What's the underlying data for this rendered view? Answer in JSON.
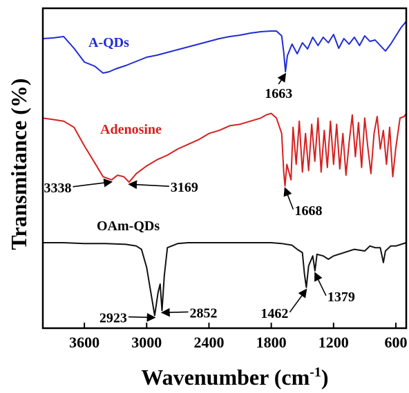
{
  "chart_data": {
    "type": "line",
    "xlabel": "Wavenumber (cm",
    "xlabel_sup": "-1",
    "xlabel_close": ")",
    "ylabel": "Transmitance (%)",
    "xlim": [
      4000,
      500
    ],
    "x_reversed": true,
    "xticks": [
      3600,
      3000,
      2400,
      1800,
      1200,
      600
    ],
    "xtick_labels": [
      "3600",
      "3000",
      "2400",
      "1800",
      "1200",
      "600"
    ],
    "y_ticks_shown": false,
    "series": [
      {
        "name": "A-QDs",
        "color": "#1f2bd6",
        "points": [
          [
            4000,
            0.7
          ],
          [
            3900,
            0.71
          ],
          [
            3800,
            0.73
          ],
          [
            3700,
            0.56
          ],
          [
            3600,
            0.36
          ],
          [
            3500,
            0.3
          ],
          [
            3420,
            0.2
          ],
          [
            3360,
            0.22
          ],
          [
            3300,
            0.26
          ],
          [
            3200,
            0.31
          ],
          [
            3100,
            0.37
          ],
          [
            3000,
            0.43
          ],
          [
            2900,
            0.46
          ],
          [
            2800,
            0.5
          ],
          [
            2700,
            0.54
          ],
          [
            2600,
            0.58
          ],
          [
            2500,
            0.62
          ],
          [
            2400,
            0.66
          ],
          [
            2300,
            0.7
          ],
          [
            2200,
            0.73
          ],
          [
            2100,
            0.75
          ],
          [
            2000,
            0.78
          ],
          [
            1900,
            0.8
          ],
          [
            1800,
            0.81
          ],
          [
            1750,
            0.81
          ],
          [
            1700,
            0.74
          ],
          [
            1680,
            0.5
          ],
          [
            1663,
            0.22
          ],
          [
            1645,
            0.45
          ],
          [
            1600,
            0.62
          ],
          [
            1550,
            0.48
          ],
          [
            1500,
            0.64
          ],
          [
            1450,
            0.55
          ],
          [
            1400,
            0.72
          ],
          [
            1350,
            0.6
          ],
          [
            1300,
            0.72
          ],
          [
            1250,
            0.64
          ],
          [
            1200,
            0.76
          ],
          [
            1150,
            0.56
          ],
          [
            1100,
            0.7
          ],
          [
            1050,
            0.62
          ],
          [
            1000,
            0.72
          ],
          [
            950,
            0.6
          ],
          [
            900,
            0.74
          ],
          [
            850,
            0.66
          ],
          [
            800,
            0.68
          ],
          [
            750,
            0.6
          ],
          [
            700,
            0.52
          ],
          [
            650,
            0.62
          ],
          [
            600,
            0.74
          ],
          [
            550,
            0.86
          ],
          [
            500,
            0.95
          ]
        ]
      },
      {
        "name": "Adenosine",
        "color": "#d62020",
        "points": [
          [
            4000,
            0.9
          ],
          [
            3900,
            0.88
          ],
          [
            3800,
            0.86
          ],
          [
            3700,
            0.78
          ],
          [
            3600,
            0.54
          ],
          [
            3500,
            0.32
          ],
          [
            3420,
            0.14
          ],
          [
            3338,
            0.1
          ],
          [
            3280,
            0.16
          ],
          [
            3220,
            0.14
          ],
          [
            3169,
            0.07
          ],
          [
            3100,
            0.18
          ],
          [
            3000,
            0.28
          ],
          [
            2900,
            0.36
          ],
          [
            2800,
            0.42
          ],
          [
            2700,
            0.5
          ],
          [
            2600,
            0.56
          ],
          [
            2500,
            0.62
          ],
          [
            2400,
            0.7
          ],
          [
            2300,
            0.74
          ],
          [
            2200,
            0.8
          ],
          [
            2100,
            0.82
          ],
          [
            2000,
            0.86
          ],
          [
            1900,
            0.9
          ],
          [
            1850,
            0.94
          ],
          [
            1800,
            0.96
          ],
          [
            1750,
            0.9
          ],
          [
            1700,
            0.7
          ],
          [
            1680,
            0.2
          ],
          [
            1668,
            0.02
          ],
          [
            1650,
            0.3
          ],
          [
            1610,
            0.1
          ],
          [
            1590,
            0.78
          ],
          [
            1560,
            0.3
          ],
          [
            1530,
            0.86
          ],
          [
            1500,
            0.2
          ],
          [
            1470,
            0.7
          ],
          [
            1440,
            0.22
          ],
          [
            1410,
            0.82
          ],
          [
            1380,
            0.34
          ],
          [
            1350,
            0.9
          ],
          [
            1320,
            0.2
          ],
          [
            1290,
            0.74
          ],
          [
            1260,
            0.26
          ],
          [
            1230,
            0.86
          ],
          [
            1200,
            0.3
          ],
          [
            1170,
            0.82
          ],
          [
            1140,
            0.24
          ],
          [
            1110,
            0.7
          ],
          [
            1080,
            0.16
          ],
          [
            1050,
            0.58
          ],
          [
            1020,
            0.94
          ],
          [
            990,
            0.4
          ],
          [
            960,
            0.84
          ],
          [
            930,
            0.26
          ],
          [
            900,
            0.9
          ],
          [
            870,
            0.52
          ],
          [
            840,
            0.18
          ],
          [
            810,
            0.7
          ],
          [
            780,
            0.92
          ],
          [
            750,
            0.5
          ],
          [
            720,
            0.74
          ],
          [
            690,
            0.3
          ],
          [
            660,
            0.78
          ],
          [
            630,
            0.14
          ],
          [
            600,
            0.52
          ],
          [
            560,
            0.9
          ],
          [
            520,
            0.92
          ],
          [
            500,
            0.96
          ]
        ]
      },
      {
        "name": "OAm-QDs",
        "color": "#111111",
        "points": [
          [
            4000,
            0.9
          ],
          [
            3800,
            0.9
          ],
          [
            3600,
            0.89
          ],
          [
            3400,
            0.89
          ],
          [
            3200,
            0.88
          ],
          [
            3100,
            0.86
          ],
          [
            3050,
            0.82
          ],
          [
            3000,
            0.6
          ],
          [
            2960,
            0.3
          ],
          [
            2923,
            0.02
          ],
          [
            2890,
            0.3
          ],
          [
            2870,
            0.4
          ],
          [
            2852,
            0.08
          ],
          [
            2830,
            0.5
          ],
          [
            2800,
            0.84
          ],
          [
            2700,
            0.89
          ],
          [
            2600,
            0.9
          ],
          [
            2400,
            0.9
          ],
          [
            2200,
            0.9
          ],
          [
            2000,
            0.9
          ],
          [
            1800,
            0.9
          ],
          [
            1700,
            0.89
          ],
          [
            1600,
            0.87
          ],
          [
            1550,
            0.82
          ],
          [
            1500,
            0.78
          ],
          [
            1480,
            0.52
          ],
          [
            1462,
            0.36
          ],
          [
            1440,
            0.62
          ],
          [
            1400,
            0.74
          ],
          [
            1379,
            0.56
          ],
          [
            1360,
            0.76
          ],
          [
            1300,
            0.74
          ],
          [
            1250,
            0.7
          ],
          [
            1200,
            0.74
          ],
          [
            1100,
            0.78
          ],
          [
            1000,
            0.82
          ],
          [
            900,
            0.8
          ],
          [
            850,
            0.86
          ],
          [
            800,
            0.84
          ],
          [
            750,
            0.84
          ],
          [
            720,
            0.66
          ],
          [
            700,
            0.8
          ],
          [
            650,
            0.86
          ],
          [
            600,
            0.86
          ],
          [
            500,
            0.9
          ]
        ]
      }
    ],
    "annotations": [
      {
        "series": "A-QDs",
        "text": "1663",
        "x": 1663
      },
      {
        "series": "Adenosine",
        "text": "3338",
        "x": 3338
      },
      {
        "series": "Adenosine",
        "text": "3169",
        "x": 3169
      },
      {
        "series": "Adenosine",
        "text": "1668",
        "x": 1668
      },
      {
        "series": "OAm-QDs",
        "text": "2923",
        "x": 2923
      },
      {
        "series": "OAm-QDs",
        "text": "2852",
        "x": 2852
      },
      {
        "series": "OAm-QDs",
        "text": "1462",
        "x": 1462
      },
      {
        "series": "OAm-QDs",
        "text": "1379",
        "x": 1379
      }
    ]
  }
}
